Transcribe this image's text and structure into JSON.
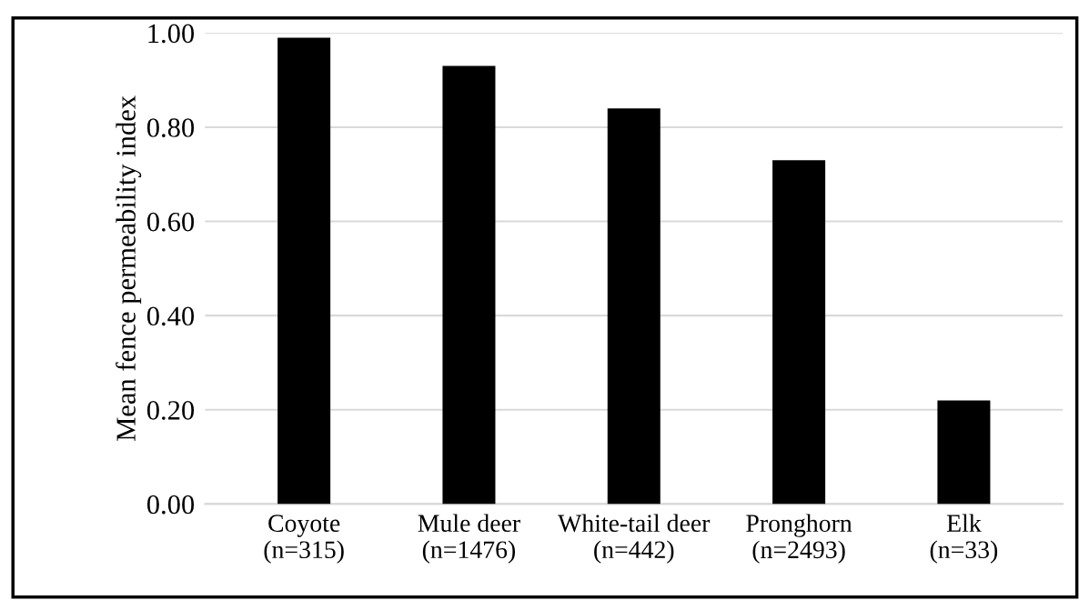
{
  "chart_data": {
    "type": "bar",
    "ylabel": "Mean fence permeability index",
    "categories": [
      "Coyote\n(n=315)",
      "Mule deer\n(n=1476)",
      "White-tail deer\n(n=442)",
      "Pronghorn\n(n=2493)",
      "Elk\n(n=33)"
    ],
    "values": [
      0.99,
      0.93,
      0.84,
      0.73,
      0.22
    ],
    "color": "#000000",
    "ylim": [
      0,
      1.0
    ],
    "yticks": [
      {
        "value": 0,
        "label": "0.00"
      },
      {
        "value": 0.2,
        "label": "0.20"
      },
      {
        "value": 0.4,
        "label": "0.40"
      },
      {
        "value": 0.6,
        "label": "0.60"
      },
      {
        "value": 0.8,
        "label": "0.80"
      },
      {
        "value": 1.0,
        "label": "1.00"
      }
    ],
    "grid": "y",
    "legend": false
  }
}
